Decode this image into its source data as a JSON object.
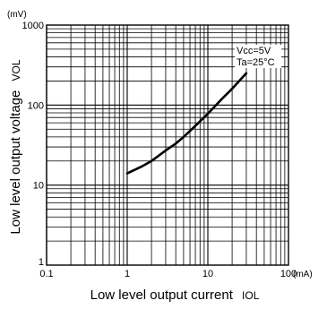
{
  "chart_data": {
    "type": "line",
    "title": "",
    "xlabel": "Low level output current",
    "xlabel_sub": "IOL",
    "xunit": "(mA)",
    "ylabel": "Low level output voltage",
    "ylabel_sub": "VOL",
    "yunit": "(mV)",
    "xscale": "log",
    "yscale": "log",
    "xlim": [
      0.1,
      100
    ],
    "ylim": [
      1,
      1000
    ],
    "grid": true,
    "x_tick_labels": [
      "0.1",
      "1",
      "10",
      "100"
    ],
    "y_tick_labels": [
      "1",
      "10",
      "100",
      "1000"
    ],
    "conditions": [
      "Vcc=5V",
      "Ta=25°C"
    ],
    "series": [
      {
        "x": [
          1.0,
          1.5,
          2.0,
          3.0,
          4.0,
          5.0,
          7.0,
          10.0,
          15.0,
          20.0,
          30.0
        ],
        "y": [
          14,
          17,
          20,
          27,
          33,
          40,
          55,
          78,
          120,
          160,
          250
        ]
      }
    ]
  }
}
